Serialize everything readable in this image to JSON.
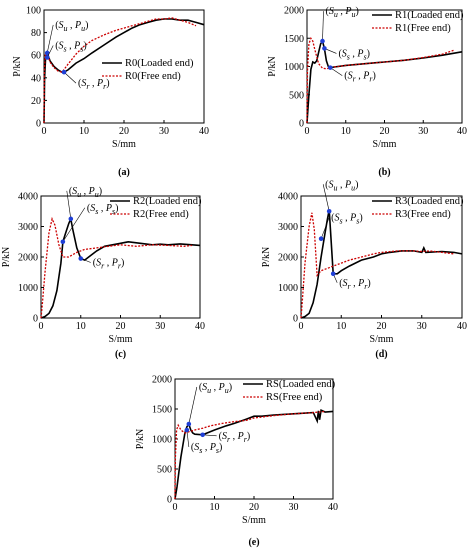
{
  "figure": {
    "panels": [
      {
        "id": "a",
        "caption": "(a)",
        "legend_position": "right",
        "annotations": [
          {
            "label": "(S_u, P_u)",
            "x": 0.8,
            "y": 62
          },
          {
            "label": "(S_s, P_s)",
            "x": 0.8,
            "y": 58
          },
          {
            "label": "(S_r, P_r)",
            "x": 5.0,
            "y": 45
          }
        ]
      },
      {
        "id": "b",
        "caption": "(b)",
        "legend_position": "top-right",
        "annotations": [
          {
            "label": "(S_u, P_u)",
            "x": 4.0,
            "y": 1450
          },
          {
            "label": "(S_s, P_s)",
            "x": 4.5,
            "y": 1320
          },
          {
            "label": "(S_r, P_r)",
            "x": 6.0,
            "y": 980
          }
        ]
      },
      {
        "id": "c",
        "caption": "(c)",
        "legend_position": "top-right",
        "annotations": [
          {
            "label": "(S_u, P_u)",
            "x": 7.5,
            "y": 3250
          },
          {
            "label": "(S_s, P_s)",
            "x": 5.5,
            "y": 2500
          },
          {
            "label": "(S_r, P_r)",
            "x": 10.0,
            "y": 1950
          }
        ]
      },
      {
        "id": "d",
        "caption": "(d)",
        "legend_position": "top-right",
        "annotations": [
          {
            "label": "(S_u, P_u)",
            "x": 7.0,
            "y": 3500
          },
          {
            "label": "(S_s, P_s)",
            "x": 5.0,
            "y": 2600
          },
          {
            "label": "(S_r, P_r)",
            "x": 8.0,
            "y": 1450
          }
        ]
      },
      {
        "id": "e",
        "caption": "(e)",
        "legend_position": "top-right",
        "annotations": [
          {
            "label": "(S_u, P_u)",
            "x": 3.5,
            "y": 1250
          },
          {
            "label": "(S_s, P_s)",
            "x": 3.0,
            "y": 1150
          },
          {
            "label": "(S_r, P_r)",
            "x": 7.0,
            "y": 1070
          }
        ]
      }
    ]
  },
  "chart_data": [
    {
      "type": "line",
      "panel": "a",
      "xlabel": "S/mm",
      "ylabel": "P/kN",
      "xlim": [
        0,
        40
      ],
      "ylim": [
        0,
        100
      ],
      "xticks": [
        0,
        10,
        20,
        30,
        40
      ],
      "yticks": [
        0,
        20,
        40,
        60,
        80,
        100
      ],
      "series": [
        {
          "name": "R0(Loaded end)",
          "color": "#000000",
          "style": "solid",
          "x": [
            0,
            0.15,
            0.4,
            0.8,
            1.5,
            2.5,
            3.5,
            4.5,
            5.0,
            6,
            7,
            8,
            10,
            12,
            15,
            18,
            20,
            22,
            24,
            26,
            28,
            30,
            32,
            34,
            36,
            38,
            40
          ],
          "y": [
            0,
            40,
            58,
            62,
            55,
            50,
            47,
            45,
            45,
            47,
            50,
            53,
            57,
            62,
            69,
            76,
            80,
            84,
            87,
            89,
            91,
            92,
            92,
            91,
            91,
            89,
            87
          ]
        },
        {
          "name": "R0(Free end)",
          "color": "#cc0000",
          "style": "dotted",
          "x": [
            0,
            0.1,
            0.3,
            0.8,
            1.5,
            2.5,
            3.5,
            4.5,
            6,
            8,
            10,
            12,
            15,
            18,
            20,
            22,
            24,
            26,
            28,
            30,
            32,
            34,
            36,
            38
          ],
          "y": [
            0,
            45,
            60,
            62,
            54,
            49,
            46,
            45,
            52,
            61,
            68,
            73,
            78,
            82,
            84,
            86,
            88,
            90,
            92,
            92,
            93,
            91,
            89,
            86
          ]
        }
      ]
    },
    {
      "type": "line",
      "panel": "b",
      "xlabel": "S/mm",
      "ylabel": "P/kN",
      "xlim": [
        0,
        40
      ],
      "ylim": [
        0,
        2000
      ],
      "xticks": [
        0,
        10,
        20,
        30,
        40
      ],
      "yticks": [
        0,
        500,
        1000,
        1500,
        2000
      ],
      "series": [
        {
          "name": "R1(Loaded end)",
          "color": "#000000",
          "style": "solid",
          "x": [
            0,
            0.5,
            1,
            1.5,
            2,
            2.5,
            3,
            3.5,
            4,
            4.5,
            5,
            5.5,
            6,
            8,
            10,
            15,
            20,
            25,
            30,
            35,
            40
          ],
          "y": [
            0,
            500,
            950,
            1080,
            1060,
            1100,
            1250,
            1400,
            1450,
            1320,
            1100,
            1000,
            980,
            1000,
            1020,
            1050,
            1080,
            1110,
            1150,
            1200,
            1260
          ]
        },
        {
          "name": "R1(Free end)",
          "color": "#cc0000",
          "style": "dotted",
          "x": [
            0,
            0.1,
            0.5,
            1,
            1.5,
            2,
            3,
            4,
            5,
            6,
            8,
            10,
            15,
            20,
            25,
            30,
            35,
            38
          ],
          "y": [
            0,
            900,
            1400,
            1500,
            1450,
            1300,
            1050,
            970,
            960,
            980,
            1000,
            1020,
            1050,
            1080,
            1110,
            1160,
            1220,
            1290
          ]
        }
      ]
    },
    {
      "type": "line",
      "panel": "c",
      "xlabel": "S/mm",
      "ylabel": "P/kN",
      "xlim": [
        0,
        40
      ],
      "ylim": [
        0,
        4000
      ],
      "xticks": [
        0,
        10,
        20,
        30,
        40
      ],
      "yticks": [
        0,
        1000,
        2000,
        3000,
        4000
      ],
      "series": [
        {
          "name": "R2(Loaded end)",
          "color": "#000000",
          "style": "solid",
          "x": [
            0,
            1,
            2,
            3,
            4,
            5,
            5.5,
            6,
            7,
            7.5,
            8,
            9,
            10,
            11,
            12,
            14,
            16,
            18,
            20,
            22,
            25,
            28,
            30,
            32,
            35,
            38,
            40
          ],
          "y": [
            0,
            50,
            150,
            400,
            900,
            1800,
            2500,
            2700,
            3100,
            3250,
            2900,
            2300,
            1950,
            1900,
            2000,
            2200,
            2350,
            2400,
            2450,
            2500,
            2450,
            2400,
            2420,
            2400,
            2430,
            2400,
            2380
          ]
        },
        {
          "name": "R2(Free end)",
          "color": "#cc0000",
          "style": "dotted",
          "x": [
            0,
            0.3,
            1,
            2,
            2.8,
            3.5,
            4.5,
            5.5,
            7,
            9,
            11,
            14,
            17,
            20,
            24,
            28,
            32,
            36,
            38
          ],
          "y": [
            0,
            400,
            1500,
            2800,
            3250,
            3050,
            2400,
            2000,
            2000,
            2150,
            2250,
            2300,
            2350,
            2400,
            2350,
            2400,
            2380,
            2350,
            2380
          ]
        }
      ]
    },
    {
      "type": "line",
      "panel": "d",
      "xlabel": "S/mm",
      "ylabel": "P/kN",
      "xlim": [
        0,
        40
      ],
      "ylim": [
        0,
        4000
      ],
      "xticks": [
        0,
        10,
        20,
        30,
        40
      ],
      "yticks": [
        0,
        1000,
        2000,
        3000,
        4000
      ],
      "series": [
        {
          "name": "R3(Loaded end)",
          "color": "#000000",
          "style": "solid",
          "x": [
            0,
            1,
            2,
            3,
            4,
            5,
            6,
            6.5,
            7,
            7.5,
            8,
            9,
            10,
            12,
            15,
            18,
            20,
            22,
            25,
            28,
            30,
            30.5,
            31,
            35,
            38,
            40
          ],
          "y": [
            0,
            50,
            150,
            500,
            1100,
            2000,
            2800,
            3200,
            3550,
            2500,
            1450,
            1450,
            1550,
            1700,
            1900,
            2000,
            2100,
            2150,
            2200,
            2200,
            2150,
            2300,
            2150,
            2180,
            2150,
            2100
          ]
        },
        {
          "name": "R3(Free end)",
          "color": "#cc0000",
          "style": "dotted",
          "x": [
            0,
            0.3,
            1,
            2,
            2.7,
            3.3,
            4,
            5,
            6,
            7,
            8,
            10,
            12,
            15,
            18,
            20,
            24,
            28,
            30,
            32,
            35,
            38
          ],
          "y": [
            0,
            500,
            1800,
            3000,
            3450,
            2900,
            1400,
            1550,
            1600,
            1650,
            1700,
            1800,
            1900,
            2000,
            2100,
            2150,
            2200,
            2200,
            2180,
            2200,
            2150,
            2100
          ]
        }
      ]
    },
    {
      "type": "line",
      "panel": "e",
      "xlabel": "S/mm",
      "ylabel": "P/kN",
      "xlim": [
        0,
        40
      ],
      "ylim": [
        0,
        2000
      ],
      "xticks": [
        0,
        10,
        20,
        30,
        40
      ],
      "yticks": [
        0,
        500,
        1000,
        1500,
        2000
      ],
      "series": [
        {
          "name": "RS(Loaded end)",
          "color": "#000000",
          "style": "solid",
          "x": [
            0,
            0.5,
            1,
            1.5,
            2,
            2.5,
            3,
            3.5,
            4,
            4.5,
            5,
            7,
            10,
            13,
            15,
            18,
            20,
            22,
            25,
            30,
            35,
            36,
            36.3,
            36.6,
            37,
            38,
            40
          ],
          "y": [
            0,
            200,
            450,
            700,
            900,
            1100,
            1200,
            1250,
            1150,
            1100,
            1080,
            1070,
            1150,
            1220,
            1260,
            1330,
            1380,
            1380,
            1400,
            1420,
            1440,
            1300,
            1470,
            1320,
            1480,
            1450,
            1460
          ]
        },
        {
          "name": "RS(Free end)",
          "color": "#cc0000",
          "style": "dotted",
          "x": [
            0,
            0.1,
            0.4,
            0.8,
            1.5,
            2.5,
            3.5,
            5,
            7,
            9,
            12,
            15,
            18,
            20,
            25,
            30,
            35,
            38
          ],
          "y": [
            0,
            700,
            1150,
            1230,
            1150,
            1100,
            1120,
            1150,
            1180,
            1220,
            1260,
            1290,
            1310,
            1350,
            1390,
            1420,
            1440,
            1460
          ]
        }
      ]
    }
  ]
}
